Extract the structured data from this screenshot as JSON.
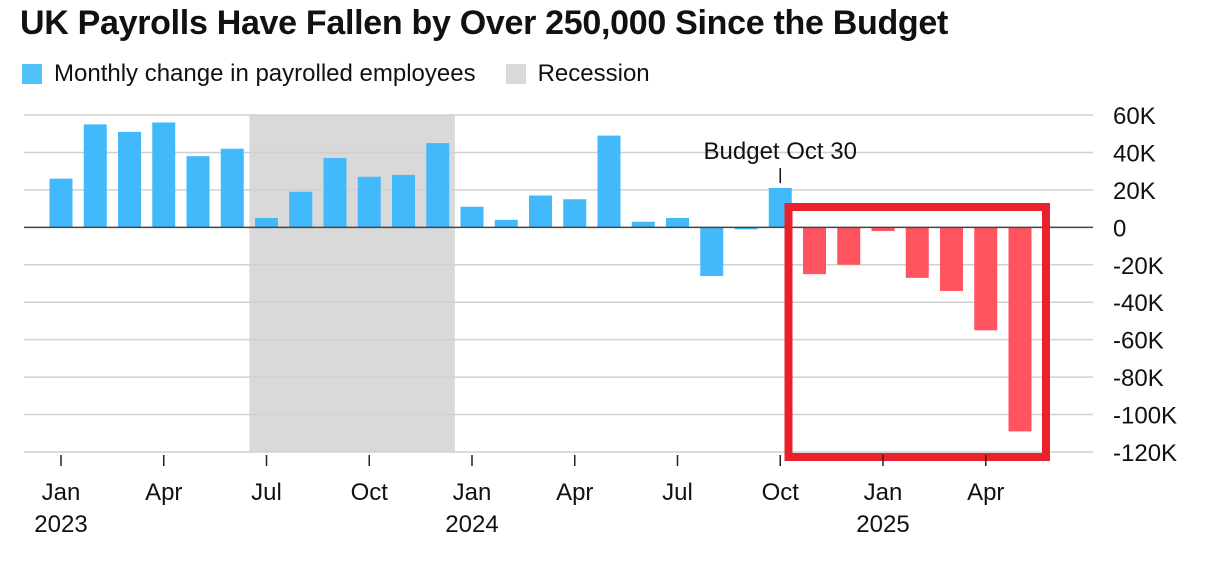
{
  "title": "UK Payrolls Have Fallen by Over 250,000 Since the Budget",
  "legend": {
    "series_label": "Monthly change in payrolled employees",
    "series_color": "#4fc3f7",
    "recession_label": "Recession",
    "recession_color": "#d9d9d9"
  },
  "colors": {
    "positive": "#42b9fa",
    "post_budget": "#ff5460",
    "highlight_box": "#e8212c",
    "gridline": "#d0d0d0",
    "zero_line": "#444444"
  },
  "chart_data": {
    "type": "bar",
    "title": "UK Payrolls Have Fallen by Over 250,000 Since the Budget",
    "xlabel": "",
    "ylabel": "",
    "ylim": [
      -120000,
      60000
    ],
    "y_ticks": [
      60000,
      40000,
      20000,
      0,
      -20000,
      -40000,
      -60000,
      -80000,
      -100000,
      -120000
    ],
    "y_tick_labels": [
      "60K",
      "40K",
      "20K",
      "0",
      "-20K",
      "-40K",
      "-60K",
      "-80K",
      "-100K",
      "-120K"
    ],
    "categories": [
      "2023-01",
      "2023-02",
      "2023-03",
      "2023-04",
      "2023-05",
      "2023-06",
      "2023-07",
      "2023-08",
      "2023-09",
      "2023-10",
      "2023-11",
      "2023-12",
      "2024-01",
      "2024-02",
      "2024-03",
      "2024-04",
      "2024-05",
      "2024-06",
      "2024-07",
      "2024-08",
      "2024-09",
      "2024-10",
      "2024-11",
      "2024-12",
      "2025-01",
      "2025-02",
      "2025-03",
      "2025-04",
      "2025-05"
    ],
    "series": [
      {
        "values": [
          26000,
          55000,
          51000,
          56000,
          38000,
          42000,
          5000,
          19000,
          37000,
          27000,
          28000,
          45000,
          11000,
          4000,
          17000,
          15000,
          49000,
          3000,
          5000,
          -26000,
          -1000,
          21000,
          -25000,
          -20000,
          -2000,
          -27000,
          -34000,
          -55000,
          -109000
        ]
      }
    ],
    "post_budget_start_index": 22,
    "recession": {
      "start": "2023-07",
      "end": "2023-12"
    },
    "x_tick_labels": [
      {
        "month": "Jan",
        "year": "2023",
        "index": 0
      },
      {
        "month": "Apr",
        "year": "",
        "index": 3
      },
      {
        "month": "Jul",
        "year": "",
        "index": 6
      },
      {
        "month": "Oct",
        "year": "",
        "index": 9
      },
      {
        "month": "Jan",
        "year": "2024",
        "index": 12
      },
      {
        "month": "Apr",
        "year": "",
        "index": 15
      },
      {
        "month": "Jul",
        "year": "",
        "index": 18
      },
      {
        "month": "Oct",
        "year": "",
        "index": 21
      },
      {
        "month": "Jan",
        "year": "2025",
        "index": 24
      },
      {
        "month": "Apr",
        "year": "",
        "index": 27
      }
    ],
    "annotation": {
      "text": "Budget Oct 30",
      "index": 21
    },
    "grid": true,
    "legend_position": "top-left"
  }
}
